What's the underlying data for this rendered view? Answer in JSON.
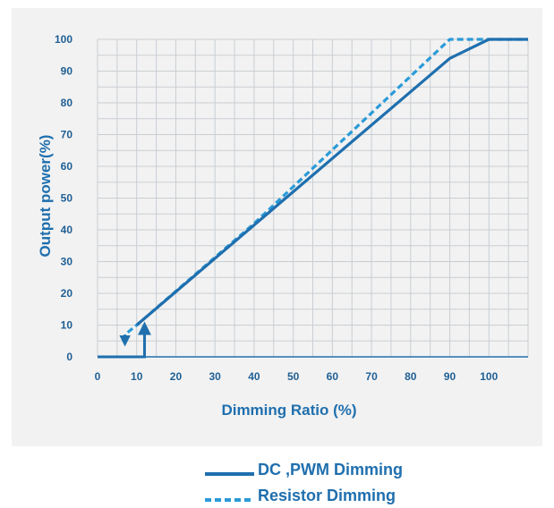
{
  "colors": {
    "primary": "#1f6fae",
    "dashed": "#2a9bd8",
    "grid": "#c9ced3",
    "axis": "#1f6fae",
    "tick": "#1f5f94",
    "background": "#f2f2f2"
  },
  "chart_data": {
    "type": "line",
    "title": "",
    "xlabel": "Dimming Ratio (%)",
    "ylabel": "Output power(%)",
    "xlim": [
      0,
      110
    ],
    "ylim": [
      0,
      100
    ],
    "x_ticks": [
      "0",
      "10",
      "20",
      "30",
      "40",
      "50",
      "60",
      "70",
      "80",
      "90",
      "100"
    ],
    "y_ticks": [
      "0",
      "10",
      "20",
      "30",
      "40",
      "50",
      "60",
      "70",
      "80",
      "90",
      "100"
    ],
    "grid": true,
    "legend_position": "bottom",
    "series": [
      {
        "name": "DC ,PWM Dimming",
        "style": "solid",
        "points": [
          [
            0,
            0
          ],
          [
            12,
            0
          ],
          [
            12,
            9
          ],
          [
            10,
            10
          ],
          [
            50,
            52
          ],
          [
            90,
            94
          ],
          [
            100,
            100
          ],
          [
            110,
            100
          ]
        ]
      },
      {
        "name": "Resistor Dimming",
        "style": "dashed",
        "points": [
          [
            7,
            5
          ],
          [
            7,
            7
          ],
          [
            10,
            10
          ],
          [
            40,
            42
          ],
          [
            90,
            100
          ],
          [
            110,
            100
          ]
        ]
      }
    ]
  }
}
